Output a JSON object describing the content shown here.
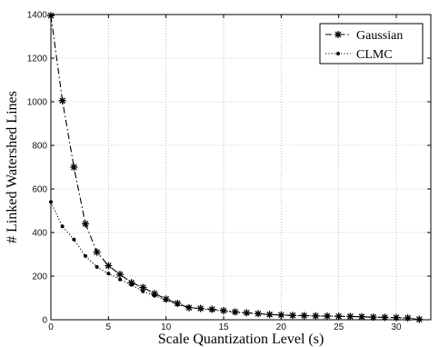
{
  "chart_data": {
    "type": "line",
    "title": "",
    "xlabel": "Scale Quantization Level (s)",
    "ylabel": "# Linked Watershed Lines",
    "xlim": [
      0,
      33
    ],
    "ylim": [
      0,
      1400
    ],
    "xticks": [
      0,
      5,
      10,
      15,
      20,
      25,
      30
    ],
    "yticks": [
      0,
      200,
      400,
      600,
      800,
      1000,
      1200,
      1400
    ],
    "grid": true,
    "legend": "top-right",
    "series": [
      {
        "name": "Gaussian",
        "marker": "asterisk",
        "line_style": "dash-dot",
        "color": "#000000",
        "x": [
          0,
          1,
          2,
          3,
          4,
          5,
          6,
          7,
          8,
          9,
          10,
          11,
          12,
          13,
          14,
          15,
          16,
          17,
          18,
          19,
          20,
          21,
          22,
          23,
          24,
          25,
          26,
          27,
          28,
          29,
          30,
          31,
          32
        ],
        "y": [
          1395,
          1005,
          700,
          440,
          310,
          248,
          208,
          170,
          148,
          120,
          95,
          75,
          55,
          52,
          48,
          42,
          36,
          32,
          28,
          24,
          22,
          20,
          19,
          18,
          17,
          16,
          15,
          14,
          12,
          11,
          10,
          8,
          2
        ]
      },
      {
        "name": "CLMC",
        "marker": "dot",
        "line_style": "dotted",
        "color": "#000000",
        "x": [
          0,
          1,
          2,
          3,
          4,
          5,
          6,
          7,
          8,
          9,
          10,
          11,
          12,
          13,
          14,
          15,
          16,
          17,
          18,
          19,
          20,
          21,
          22,
          23,
          24,
          25,
          26,
          27,
          28,
          29,
          30,
          31,
          32
        ],
        "y": [
          540,
          428,
          368,
          292,
          242,
          212,
          185,
          160,
          130,
          110,
          90,
          70,
          57,
          50,
          45,
          40,
          34,
          30,
          27,
          23,
          21,
          19,
          18,
          17,
          16,
          15,
          14,
          13,
          11,
          10,
          9,
          7,
          2
        ]
      }
    ]
  }
}
